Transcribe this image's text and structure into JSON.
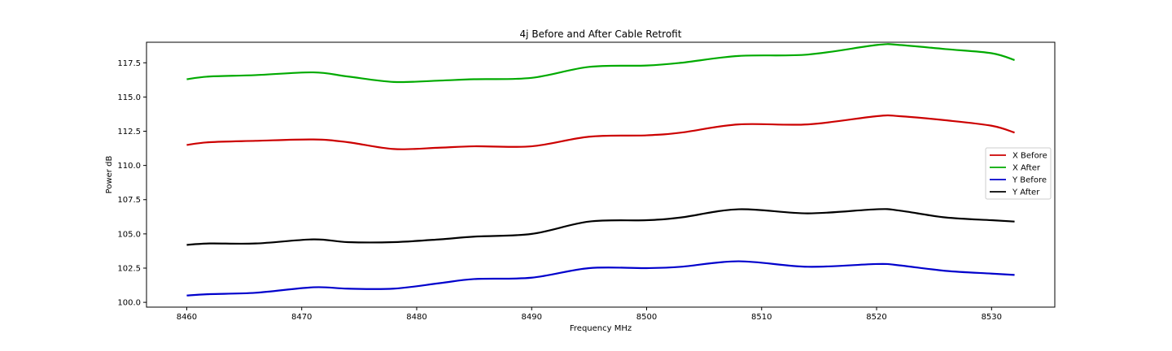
{
  "chart_data": {
    "type": "line",
    "title": "4j Before and After Cable Retrofit",
    "xlabel": "Frequency MHz",
    "ylabel": "Power dB",
    "xlim": [
      8456.5,
      8535.5
    ],
    "ylim": [
      99.65,
      119.0
    ],
    "xticks": [
      8460,
      8470,
      8480,
      8490,
      8500,
      8510,
      8520,
      8530
    ],
    "yticks": [
      100.0,
      102.5,
      105.0,
      107.5,
      110.0,
      112.5,
      115.0,
      117.5
    ],
    "xtick_labels": [
      "8460",
      "8470",
      "8480",
      "8490",
      "8500",
      "8510",
      "8520",
      "8530"
    ],
    "ytick_labels": [
      "100.0",
      "102.5",
      "105.0",
      "107.5",
      "110.0",
      "112.5",
      "115.0",
      "117.5"
    ],
    "legend_position": "center-right",
    "grid": false,
    "x": [
      8460,
      8462,
      8466,
      8471,
      8474,
      8478,
      8482,
      8485,
      8490,
      8495,
      8500,
      8503,
      8508,
      8514,
      8520,
      8522,
      8526,
      8530,
      8532
    ],
    "series": [
      {
        "name": "X Before",
        "color": "#cc0000",
        "values": [
          111.5,
          111.7,
          111.8,
          111.9,
          111.7,
          111.2,
          111.3,
          111.4,
          111.4,
          112.1,
          112.2,
          112.4,
          113.0,
          113.0,
          113.6,
          113.6,
          113.3,
          112.9,
          112.4
        ]
      },
      {
        "name": "X After",
        "color": "#00aa00",
        "values": [
          116.3,
          116.5,
          116.6,
          116.8,
          116.5,
          116.1,
          116.2,
          116.3,
          116.4,
          117.2,
          117.3,
          117.5,
          118.0,
          118.1,
          118.8,
          118.8,
          118.5,
          118.2,
          117.7
        ]
      },
      {
        "name": "Y Before",
        "color": "#0000cc",
        "values": [
          100.5,
          100.6,
          100.7,
          101.1,
          101.0,
          101.0,
          101.4,
          101.7,
          101.8,
          102.5,
          102.5,
          102.6,
          103.0,
          102.6,
          102.8,
          102.7,
          102.3,
          102.1,
          102.0
        ]
      },
      {
        "name": "Y After",
        "color": "#000000",
        "values": [
          104.2,
          104.3,
          104.3,
          104.6,
          104.4,
          104.4,
          104.6,
          104.8,
          105.0,
          105.9,
          106.0,
          106.2,
          106.8,
          106.5,
          106.8,
          106.7,
          106.2,
          106.0,
          105.9
        ]
      }
    ]
  }
}
